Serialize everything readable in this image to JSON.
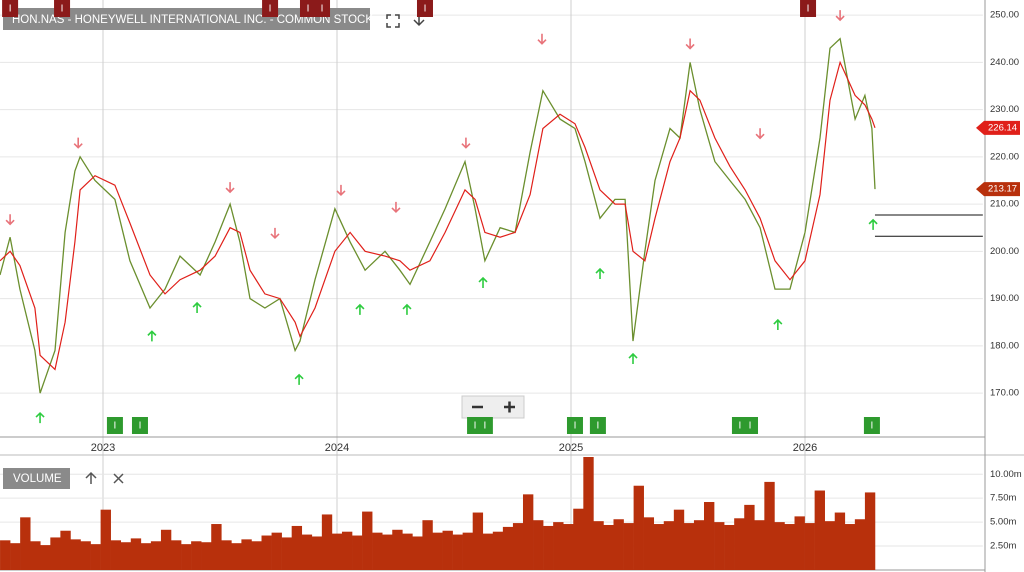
{
  "chart_data": [
    {
      "type": "line",
      "title": "HON.NAS - HONEYWELL INTERNATIONAL INC. - COMMON STOCK",
      "x": [
        2022.56,
        2022.603,
        2022.645,
        2022.709,
        2022.731,
        2022.795,
        2022.838,
        2022.88,
        2022.902,
        2022.966,
        2023.051,
        2023.115,
        2023.201,
        2023.265,
        2023.329,
        2023.415,
        2023.479,
        2023.543,
        2023.585,
        2023.628,
        2023.692,
        2023.756,
        2023.821,
        2023.842,
        2023.906,
        2023.991,
        2024.056,
        2024.12,
        2024.205,
        2024.269,
        2024.312,
        2024.397,
        2024.462,
        2024.547,
        2024.59,
        2024.632,
        2024.697,
        2024.761,
        2024.825,
        2024.88,
        2024.953,
        2025.017,
        2025.06,
        2025.124,
        2025.188,
        2025.231,
        2025.265,
        2025.316,
        2025.359,
        2025.423,
        2025.466,
        2025.509,
        2025.551,
        2025.615,
        2025.679,
        2025.744,
        2025.808,
        2025.872,
        2025.936,
        2026.0,
        2026.064,
        2026.107,
        2026.15,
        2026.214,
        2026.256,
        2026.286,
        2026.299
      ],
      "series": [
        {
          "color": "#6b8f2e",
          "values": [
            195,
            203,
            192,
            179,
            170,
            179,
            204,
            217,
            220,
            215,
            211,
            198,
            188,
            192,
            199,
            195,
            202,
            210,
            202,
            190,
            188,
            190,
            179,
            181,
            194,
            209,
            202,
            196,
            200,
            196,
            193,
            202,
            209,
            219,
            209,
            198,
            205,
            204,
            221,
            234,
            228,
            226,
            219,
            207,
            211,
            211,
            181,
            200,
            215,
            226,
            224,
            240,
            230,
            219,
            215,
            211,
            205,
            192,
            192,
            204,
            224,
            243,
            245,
            228,
            233,
            226,
            213.17
          ]
        },
        {
          "color": "#e0201a",
          "values": [
            198,
            200,
            197,
            188,
            178,
            175,
            185,
            202,
            213,
            216,
            214,
            206,
            195,
            191,
            194,
            196,
            199,
            205,
            204,
            196,
            191,
            190,
            185,
            182,
            188,
            200,
            204,
            200,
            199,
            198,
            196,
            198,
            204,
            213,
            211,
            204,
            203,
            204,
            212,
            226,
            229,
            227,
            222,
            213,
            210,
            210,
            200,
            198,
            207,
            219,
            224,
            234,
            232,
            224,
            218,
            213,
            207,
            198,
            194,
            198,
            212,
            232,
            240,
            233,
            231,
            228,
            226.14
          ]
        }
      ],
      "xlim": [
        2022.56,
        2026.76
      ],
      "xticks": [
        2023,
        2024,
        2025,
        2026
      ],
      "ylim": [
        160.7,
        253.2
      ],
      "yticks": [
        {
          "value": 170,
          "label": "170.00"
        },
        {
          "value": 180,
          "label": "180.00"
        },
        {
          "value": 190,
          "label": "190.00"
        },
        {
          "value": 200,
          "label": "200.00"
        },
        {
          "value": 210,
          "label": "210.00"
        },
        {
          "value": 220,
          "label": "220.00"
        },
        {
          "value": 230,
          "label": "230.00"
        },
        {
          "value": 240,
          "label": "240.00"
        },
        {
          "value": 250,
          "label": "250.00"
        }
      ],
      "grid": true,
      "down_arrows": {
        "color": "#e8737a",
        "x": [
          2022.603,
          2022.894,
          2023.543,
          2023.735,
          2024.017,
          2024.252,
          2024.551,
          2024.876,
          2025.509,
          2025.808,
          2026.15
        ],
        "y": [
          206.8,
          223,
          213.6,
          203.9,
          213,
          209.4,
          223,
          245,
          244,
          225,
          250
        ]
      },
      "up_arrows": {
        "color": "#2ecc40",
        "x": [
          2022.731,
          2023.209,
          2023.402,
          2023.838,
          2024.098,
          2024.299,
          2024.624,
          2025.124,
          2025.265,
          2025.884,
          2026.291
        ],
        "y": [
          164.7,
          182,
          188,
          172.8,
          187.6,
          187.6,
          193.3,
          195.2,
          177.2,
          184.4,
          205.6
        ]
      },
      "event_label": "I",
      "top_events": {
        "color": "#8b1a1a",
        "x": [
          2022.603,
          2022.825,
          2023.714,
          2023.876,
          2023.936,
          2024.376,
          2026.013
        ]
      },
      "bottom_events": {
        "color": "#2e9a2e",
        "x": [
          2023.051,
          2023.158,
          2024.59,
          2024.632,
          2025.017,
          2025.115,
          2025.722,
          2025.765,
          2026.286
        ]
      },
      "levels": [
        207.7,
        203.2
      ]
    },
    {
      "type": "bar",
      "title": "VOLUME",
      "color": "#b8300c",
      "categories": [
        null,
        null,
        null,
        null,
        null,
        null,
        null,
        null,
        null,
        null,
        null,
        null,
        null,
        null,
        null,
        null,
        null,
        null,
        null,
        null,
        null,
        null,
        null,
        null,
        null,
        null,
        null,
        null,
        null,
        null,
        null,
        null,
        null,
        null,
        null,
        null,
        null,
        null,
        null,
        null,
        null,
        null,
        null,
        null,
        null,
        null,
        null,
        null,
        null,
        null,
        null,
        null,
        null,
        null,
        null,
        null,
        null,
        null,
        null,
        null,
        null,
        null,
        null,
        null,
        null,
        null,
        null,
        null,
        null,
        null,
        null,
        null,
        null,
        null,
        null,
        null,
        null,
        null,
        null,
        null,
        null,
        null,
        null,
        null,
        null,
        null,
        null
      ],
      "values": [
        3.1,
        2.8,
        5.5,
        3.0,
        2.6,
        3.4,
        4.1,
        3.2,
        3.0,
        2.7,
        6.3,
        3.1,
        2.9,
        3.3,
        2.8,
        3.0,
        4.2,
        3.1,
        2.7,
        3.0,
        2.9,
        4.8,
        3.1,
        2.8,
        3.2,
        3.0,
        3.6,
        3.9,
        3.4,
        4.6,
        3.7,
        3.5,
        5.8,
        3.8,
        4.0,
        3.6,
        6.1,
        3.9,
        3.7,
        4.2,
        3.8,
        3.5,
        5.2,
        3.9,
        4.1,
        3.7,
        3.9,
        6.0,
        3.8,
        4.0,
        4.5,
        4.9,
        7.9,
        5.2,
        4.6,
        5.0,
        4.8,
        6.4,
        11.8,
        5.1,
        4.7,
        5.3,
        4.9,
        8.8,
        5.5,
        4.8,
        5.1,
        6.3,
        4.9,
        5.2,
        7.1,
        5.0,
        4.7,
        5.4,
        6.8,
        5.2,
        9.2,
        5.0,
        4.8,
        5.6,
        4.9,
        8.3,
        5.1,
        6.0,
        4.8,
        5.3,
        8.1
      ],
      "ylim": [
        0,
        11.8
      ],
      "yticks": [
        {
          "value": 2.5,
          "label": "2.50m"
        },
        {
          "value": 5,
          "label": "5.00m"
        },
        {
          "value": 7.5,
          "label": "7.50m"
        },
        {
          "value": 10,
          "label": "10.00m"
        }
      ],
      "grid": true
    }
  ]
}
